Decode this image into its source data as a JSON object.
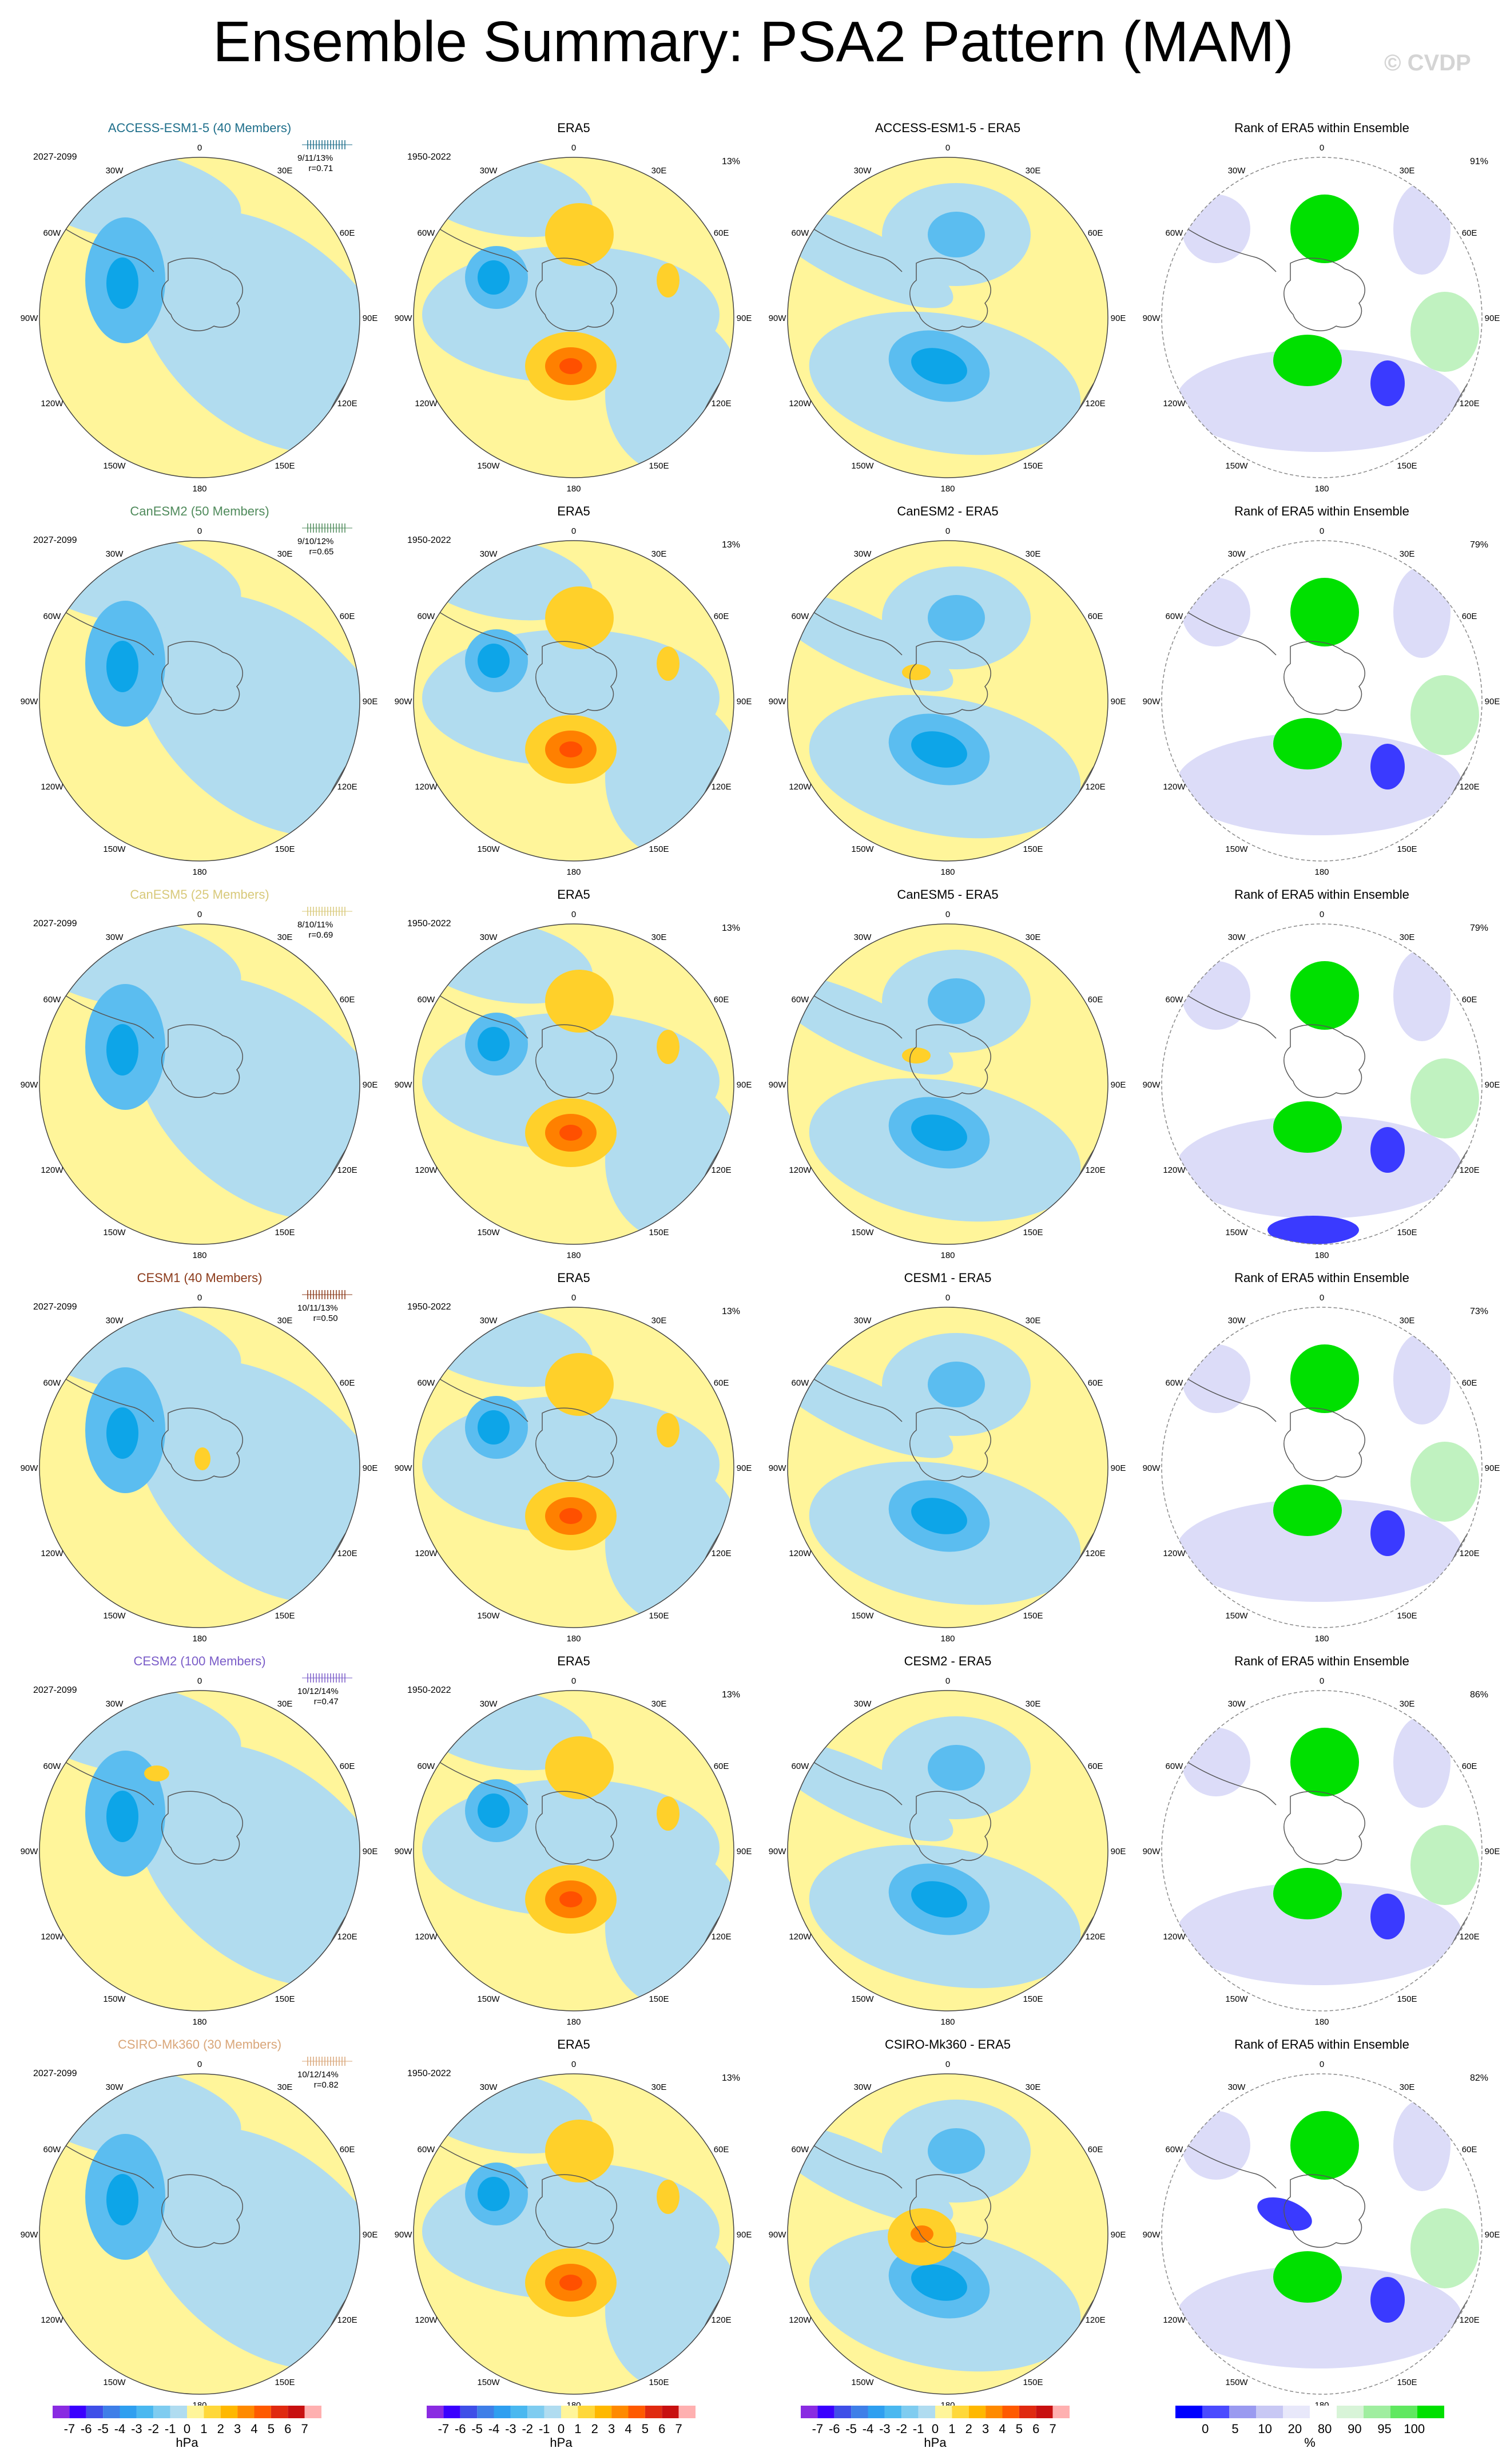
{
  "title": "Ensemble Summary: PSA2 Pattern (MAM)",
  "watermark": "© CVDP",
  "column_titles": {
    "obs": "ERA5",
    "rank": "Rank of ERA5 within Ensemble"
  },
  "obs_period": "1950-2022",
  "obs_pct": "13%",
  "model_period": "2027-2099",
  "longitude_labels": [
    "0",
    "30E",
    "60E",
    "90E",
    "120E",
    "150E",
    "180",
    "150W",
    "120W",
    "90W",
    "60W",
    "30W"
  ],
  "rows": [
    {
      "model_title": "ACCESS-ESM1-5 (40 Members)",
      "model_color": "#1f6f8b",
      "stats": "9/11/13%",
      "r": "r=0.71",
      "diff_title": "ACCESS-ESM1-5 - ERA5",
      "rank_pct": "91%"
    },
    {
      "model_title": "CanESM2 (50 Members)",
      "model_color": "#4f8a5b",
      "stats": "9/10/12%",
      "r": "r=0.65",
      "diff_title": "CanESM2 - ERA5",
      "rank_pct": "79%"
    },
    {
      "model_title": "CanESM5 (25 Members)",
      "model_color": "#d8c97a",
      "stats": "8/10/11%",
      "r": "r=0.69",
      "diff_title": "CanESM5 - ERA5",
      "rank_pct": "79%"
    },
    {
      "model_title": "CESM1 (40 Members)",
      "model_color": "#8b3a1a",
      "stats": "10/11/13%",
      "r": "r=0.50",
      "diff_title": "CESM1 - ERA5",
      "rank_pct": "73%"
    },
    {
      "model_title": "CESM2 (100 Members)",
      "model_color": "#7a5cc8",
      "stats": "10/12/14%",
      "r": "r=0.47",
      "diff_title": "CESM2 - ERA5",
      "rank_pct": "86%"
    },
    {
      "model_title": "CSIRO-Mk360 (30 Members)",
      "model_color": "#d9a679",
      "stats": "10/12/14%",
      "r": "r=0.82",
      "diff_title": "CSIRO-Mk360 - ERA5",
      "rank_pct": "82%"
    }
  ],
  "colorbar_hpa": {
    "units": "hPa",
    "labels": [
      "-7",
      "-6",
      "-5",
      "-4",
      "-3",
      "-2",
      "-1",
      "0",
      "1",
      "2",
      "3",
      "4",
      "5",
      "6",
      "7"
    ],
    "colors": [
      "#8a2be2",
      "#3a00ff",
      "#3f4fe8",
      "#3f7fe8",
      "#2f9ff0",
      "#4ab8f0",
      "#7fccf0",
      "#b0dcf0",
      "#fff59a",
      "#ffd83a",
      "#ffb800",
      "#ff8a00",
      "#ff5a00",
      "#e02a10",
      "#c81010",
      "#ffb0b0"
    ]
  },
  "colorbar_pct": {
    "units": "%",
    "labels": [
      "0",
      "5",
      "10",
      "20",
      "80",
      "90",
      "95",
      "100"
    ],
    "colors": [
      "#0000ff",
      "#4a4aff",
      "#9a9af0",
      "#c8c8f4",
      "#e8e8fa",
      "#ffffff",
      "#d8f4d8",
      "#a0eea0",
      "#60e860",
      "#00e000"
    ]
  },
  "value_colors": {
    "strong_negative": "#0da5e8",
    "negative": "#5bbdf0",
    "weak_negative": "#b1dcef",
    "weak_positive": "#fff59a",
    "positive": "#ffd02a",
    "strong_positive": "#ff8000",
    "max_positive": "#ff5000",
    "rank_low": "#3a3aff",
    "rank_mid_low": "#dcdcf8",
    "rank_high": "#00e000",
    "rank_mid_high": "#c0f2c0"
  }
}
